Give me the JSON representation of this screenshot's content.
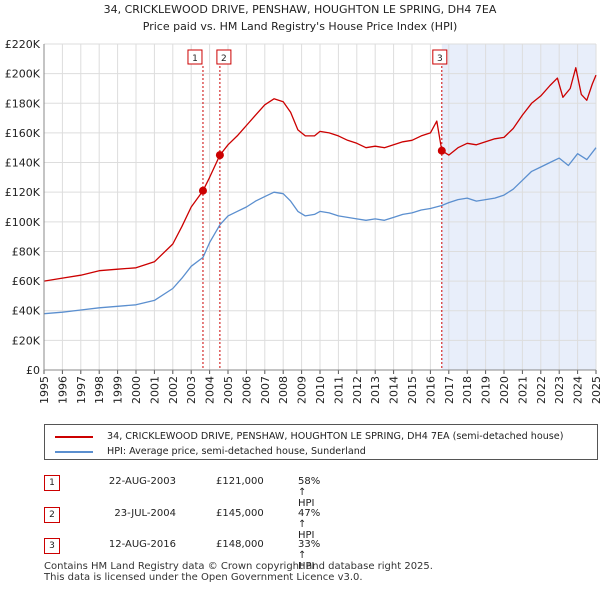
{
  "chart_data": {
    "type": "line",
    "title": "34, CRICKLEWOOD DRIVE, PENSHAW, HOUGHTON LE SPRING, DH4 7EA",
    "subtitle": "Price paid vs. HM Land Registry's House Price Index (HPI)",
    "xlim": [
      1995,
      2025
    ],
    "ylim": [
      0,
      220000
    ],
    "x_ticks": [
      "1995",
      "1996",
      "1997",
      "1998",
      "1999",
      "2000",
      "2001",
      "2002",
      "2003",
      "2004",
      "2005",
      "2006",
      "2007",
      "2008",
      "2009",
      "2010",
      "2011",
      "2012",
      "2013",
      "2014",
      "2015",
      "2016",
      "2017",
      "2018",
      "2019",
      "2020",
      "2021",
      "2022",
      "2023",
      "2024",
      "2025"
    ],
    "y_ticks": [
      {
        "value": 0,
        "label": "£0"
      },
      {
        "value": 20000,
        "label": "£20K"
      },
      {
        "value": 40000,
        "label": "£40K"
      },
      {
        "value": 60000,
        "label": "£60K"
      },
      {
        "value": 80000,
        "label": "£80K"
      },
      {
        "value": 100000,
        "label": "£100K"
      },
      {
        "value": 120000,
        "label": "£120K"
      },
      {
        "value": 140000,
        "label": "£140K"
      },
      {
        "value": 160000,
        "label": "£160K"
      },
      {
        "value": 180000,
        "label": "£180K"
      },
      {
        "value": 200000,
        "label": "£200K"
      },
      {
        "value": 220000,
        "label": "£220K"
      }
    ],
    "grid": true,
    "shaded_region": {
      "from": 2016.62,
      "to": 2025
    },
    "series": [
      {
        "name": "34, CRICKLEWOOD DRIVE, PENSHAW, HOUGHTON LE SPRING, DH4 7EA (semi-detached house)",
        "color": "#cc0000",
        "points": [
          [
            1995,
            60000
          ],
          [
            1996,
            62000
          ],
          [
            1997,
            64000
          ],
          [
            1998,
            67000
          ],
          [
            1999,
            68000
          ],
          [
            2000,
            69000
          ],
          [
            2001,
            73000
          ],
          [
            2002,
            85000
          ],
          [
            2002.5,
            97000
          ],
          [
            2003,
            110000
          ],
          [
            2003.64,
            121000
          ],
          [
            2004,
            130000
          ],
          [
            2004.56,
            145000
          ],
          [
            2005,
            152000
          ],
          [
            2005.5,
            158000
          ],
          [
            2006,
            165000
          ],
          [
            2006.5,
            172000
          ],
          [
            2007,
            179000
          ],
          [
            2007.5,
            183000
          ],
          [
            2008,
            181000
          ],
          [
            2008.4,
            174000
          ],
          [
            2008.8,
            162000
          ],
          [
            2009.2,
            158000
          ],
          [
            2009.7,
            158000
          ],
          [
            2010,
            161000
          ],
          [
            2010.5,
            160000
          ],
          [
            2011,
            158000
          ],
          [
            2011.5,
            155000
          ],
          [
            2012,
            153000
          ],
          [
            2012.5,
            150000
          ],
          [
            2013,
            151000
          ],
          [
            2013.5,
            150000
          ],
          [
            2014,
            152000
          ],
          [
            2014.5,
            154000
          ],
          [
            2015,
            155000
          ],
          [
            2015.5,
            158000
          ],
          [
            2016,
            160000
          ],
          [
            2016.35,
            168000
          ],
          [
            2016.62,
            148000
          ],
          [
            2017,
            145000
          ],
          [
            2017.5,
            150000
          ],
          [
            2018,
            153000
          ],
          [
            2018.5,
            152000
          ],
          [
            2019,
            154000
          ],
          [
            2019.5,
            156000
          ],
          [
            2020,
            157000
          ],
          [
            2020.5,
            163000
          ],
          [
            2021,
            172000
          ],
          [
            2021.5,
            180000
          ],
          [
            2022,
            185000
          ],
          [
            2022.5,
            192000
          ],
          [
            2022.9,
            197000
          ],
          [
            2023.2,
            184000
          ],
          [
            2023.6,
            190000
          ],
          [
            2023.9,
            204000
          ],
          [
            2024.2,
            186000
          ],
          [
            2024.5,
            182000
          ],
          [
            2024.8,
            193000
          ],
          [
            2025,
            199000
          ]
        ]
      },
      {
        "name": "HPI: Average price, semi-detached house, Sunderland",
        "color": "#5b8fcf",
        "points": [
          [
            1995,
            38000
          ],
          [
            1996,
            39000
          ],
          [
            1997,
            40500
          ],
          [
            1998,
            42000
          ],
          [
            1999,
            43000
          ],
          [
            2000,
            44000
          ],
          [
            2001,
            47000
          ],
          [
            2002,
            55000
          ],
          [
            2002.5,
            62000
          ],
          [
            2003,
            70000
          ],
          [
            2003.64,
            76000
          ],
          [
            2004,
            86000
          ],
          [
            2004.56,
            98000
          ],
          [
            2005,
            104000
          ],
          [
            2005.5,
            107000
          ],
          [
            2006,
            110000
          ],
          [
            2006.5,
            114000
          ],
          [
            2007,
            117000
          ],
          [
            2007.5,
            120000
          ],
          [
            2008,
            119000
          ],
          [
            2008.4,
            114000
          ],
          [
            2008.8,
            107000
          ],
          [
            2009.2,
            104000
          ],
          [
            2009.7,
            105000
          ],
          [
            2010,
            107000
          ],
          [
            2010.5,
            106000
          ],
          [
            2011,
            104000
          ],
          [
            2011.5,
            103000
          ],
          [
            2012,
            102000
          ],
          [
            2012.5,
            101000
          ],
          [
            2013,
            102000
          ],
          [
            2013.5,
            101000
          ],
          [
            2014,
            103000
          ],
          [
            2014.5,
            105000
          ],
          [
            2015,
            106000
          ],
          [
            2015.5,
            108000
          ],
          [
            2016,
            109000
          ],
          [
            2016.62,
            111000
          ],
          [
            2017,
            113000
          ],
          [
            2017.5,
            115000
          ],
          [
            2018,
            116000
          ],
          [
            2018.5,
            114000
          ],
          [
            2019,
            115000
          ],
          [
            2019.5,
            116000
          ],
          [
            2020,
            118000
          ],
          [
            2020.5,
            122000
          ],
          [
            2021,
            128000
          ],
          [
            2021.5,
            134000
          ],
          [
            2022,
            137000
          ],
          [
            2022.5,
            140000
          ],
          [
            2023,
            143000
          ],
          [
            2023.5,
            138000
          ],
          [
            2024,
            146000
          ],
          [
            2024.5,
            142000
          ],
          [
            2025,
            150000
          ]
        ]
      }
    ],
    "sales": [
      {
        "label": "1",
        "x": 2003.64,
        "value": 121000,
        "date": "22-AUG-2003",
        "price": "£121,000",
        "delta": "58% ↑ HPI"
      },
      {
        "label": "2",
        "x": 2004.56,
        "value": 145000,
        "date": "23-JUL-2004",
        "price": "£145,000",
        "delta": "47% ↑ HPI"
      },
      {
        "label": "3",
        "x": 2016.62,
        "value": 148000,
        "date": "12-AUG-2016",
        "price": "£148,000",
        "delta": "33% ↑ HPI"
      }
    ]
  },
  "legend": {
    "property_label": "34, CRICKLEWOOD DRIVE, PENSHAW, HOUGHTON LE SPRING, DH4 7EA (semi-detached house)",
    "hpi_label": "HPI: Average price, semi-detached house, Sunderland"
  },
  "footer": {
    "line1": "Contains HM Land Registry data © Crown copyright and database right 2025.",
    "line2": "This data is licensed under the Open Government Licence v3.0."
  }
}
